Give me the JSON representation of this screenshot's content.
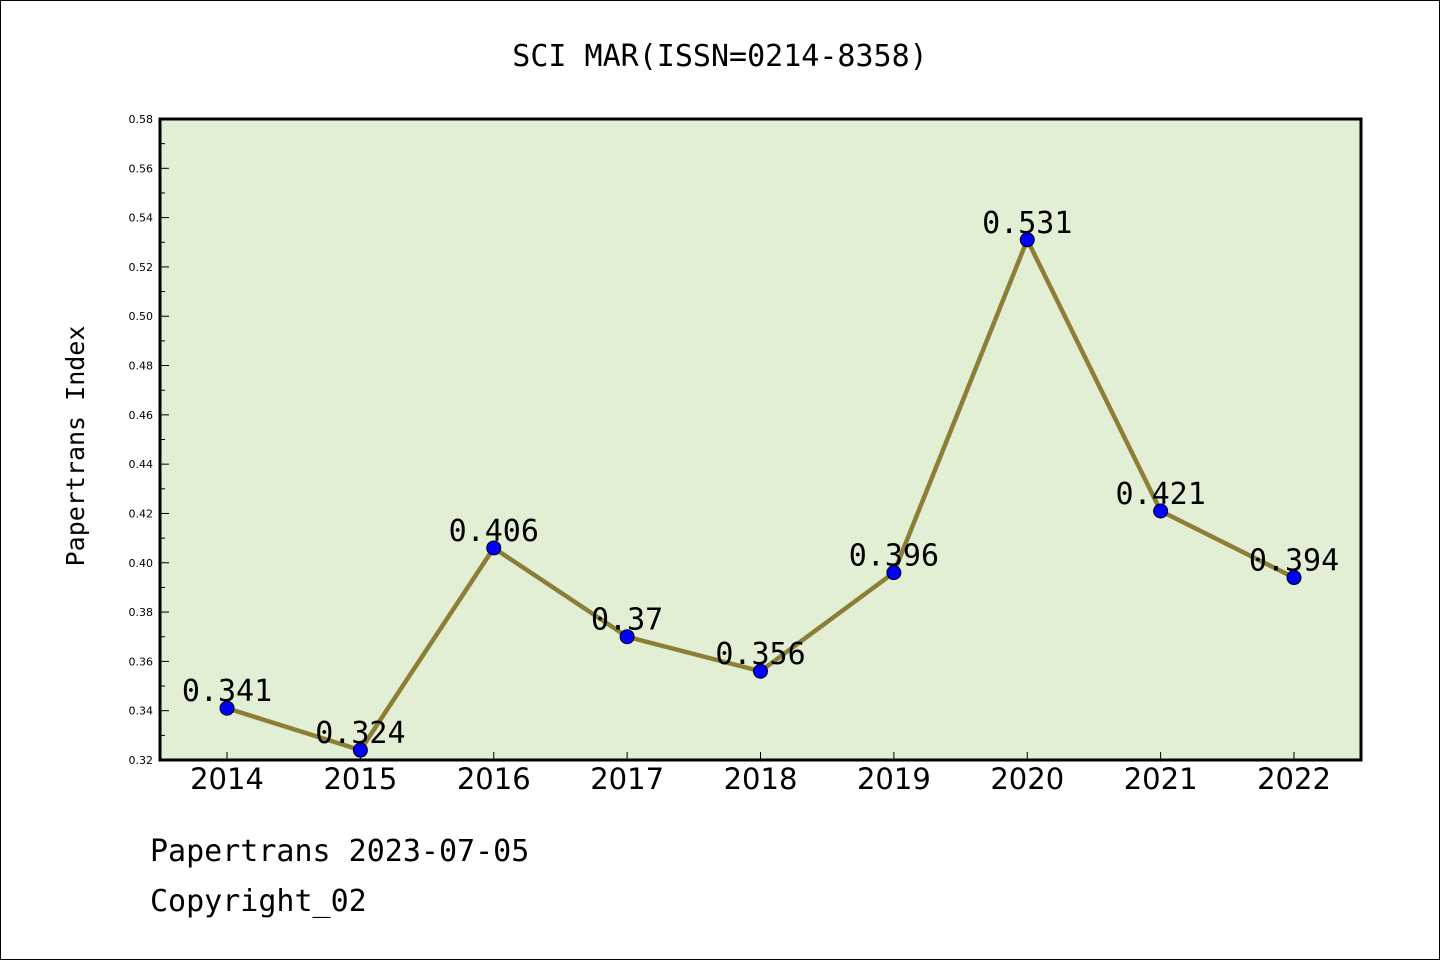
{
  "colors": {
    "plot_background": "#e2efd5",
    "line": "#8c7f35",
    "marker": "#0000ff",
    "axis": "#000000"
  },
  "chart_data": {
    "type": "line",
    "title": "SCI MAR(ISSN=0214-8358)",
    "xlabel": "",
    "ylabel": "Papertrans Index",
    "categories": [
      "2014",
      "2015",
      "2016",
      "2017",
      "2018",
      "2019",
      "2020",
      "2021",
      "2022"
    ],
    "series": [
      {
        "values": [
          0.341,
          0.324,
          0.406,
          0.37,
          0.356,
          0.396,
          0.531,
          0.421,
          0.394
        ],
        "labels": [
          "0.341",
          "0.324",
          "0.406",
          "0.37",
          "0.356",
          "0.396",
          "0.531",
          "0.421",
          "0.394"
        ]
      }
    ],
    "ylim": [
      0.32,
      0.58
    ],
    "yticks": [
      "0.32",
      "0.34",
      "0.36",
      "0.38",
      "0.40",
      "0.42",
      "0.44",
      "0.46",
      "0.48",
      "0.50",
      "0.52",
      "0.54",
      "0.56",
      "0.58"
    ],
    "grid": false,
    "legend": "none"
  },
  "footer": {
    "line1": "Papertrans 2023-07-05",
    "line2": "Copyright_02"
  }
}
